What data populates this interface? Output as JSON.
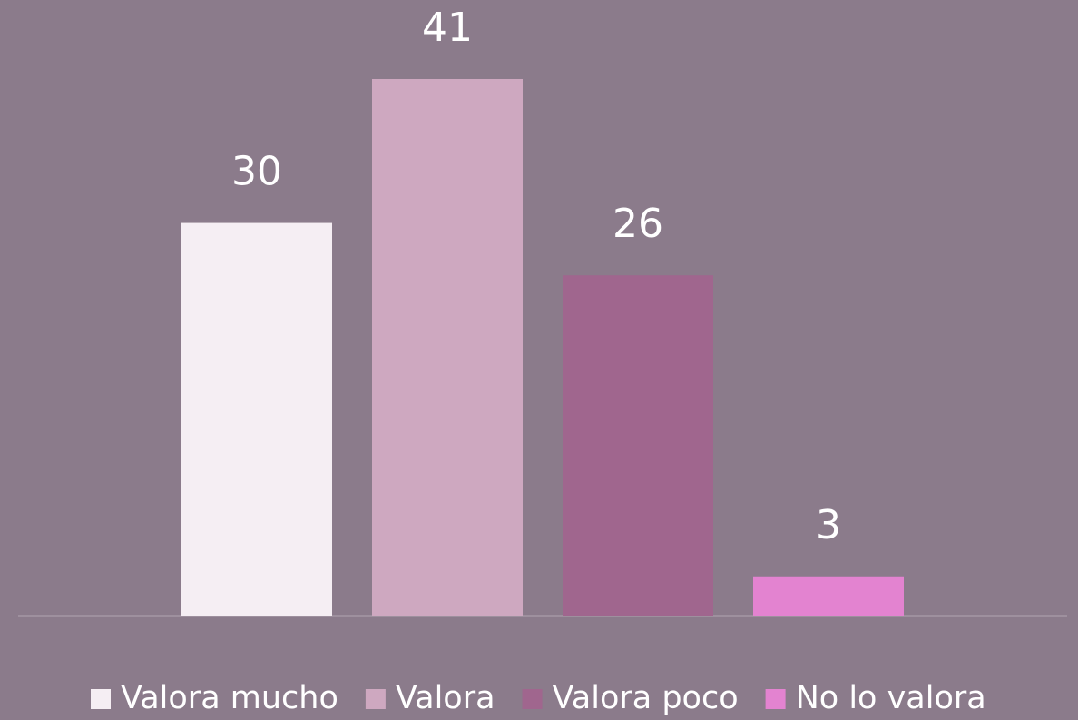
{
  "chart_data": {
    "type": "bar",
    "categories": [
      null
    ],
    "series": [
      {
        "name": "Valora mucho",
        "color": "#f5eef3",
        "values": [
          30
        ]
      },
      {
        "name": "Valora",
        "color": "#cea8c0",
        "values": [
          41
        ]
      },
      {
        "name": "Valora poco",
        "color": "#a0668e",
        "values": [
          26
        ]
      },
      {
        "name": "No lo valora",
        "color": "#e383d0",
        "values": [
          3
        ]
      }
    ],
    "legend": "bottom"
  }
}
